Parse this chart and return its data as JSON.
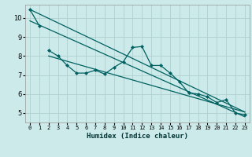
{
  "xlabel": "Humidex (Indice chaleur)",
  "bg_color": "#cceaea",
  "grid_color": "#b0d0d0",
  "line_color": "#006060",
  "xlim": [
    -0.5,
    23.5
  ],
  "ylim": [
    4.5,
    10.7
  ],
  "yticks": [
    5,
    6,
    7,
    8,
    9,
    10
  ],
  "xticks": [
    0,
    1,
    2,
    3,
    4,
    5,
    6,
    7,
    8,
    9,
    10,
    11,
    12,
    13,
    14,
    15,
    16,
    17,
    18,
    19,
    20,
    21,
    22,
    23
  ],
  "series1_x": [
    0,
    1
  ],
  "series1_y": [
    10.45,
    9.6
  ],
  "series2_x": [
    2,
    3,
    4,
    5,
    6,
    7,
    8,
    9,
    10,
    11,
    12,
    13,
    14,
    15,
    16,
    17,
    18,
    19,
    20,
    21,
    22,
    23
  ],
  "series2_y": [
    8.3,
    8.0,
    7.5,
    7.1,
    7.1,
    7.25,
    7.05,
    7.4,
    7.7,
    8.45,
    8.5,
    7.5,
    7.5,
    7.1,
    6.65,
    6.05,
    6.0,
    5.85,
    5.55,
    5.7,
    5.0,
    4.9
  ],
  "line1_x": [
    0,
    23
  ],
  "line1_y": [
    10.45,
    5.05
  ],
  "line2_x": [
    0,
    23
  ],
  "line2_y": [
    9.85,
    4.8
  ],
  "line3_x": [
    2,
    23
  ],
  "line3_y": [
    8.0,
    5.05
  ]
}
